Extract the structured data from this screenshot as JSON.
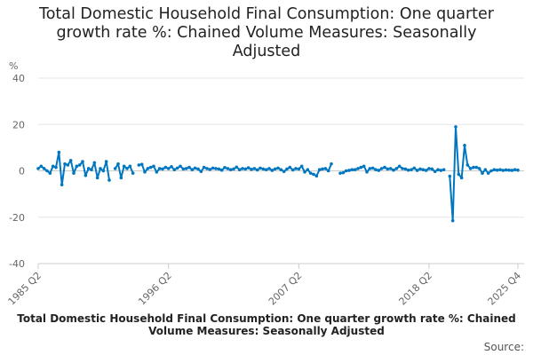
{
  "chart_data": {
    "type": "line",
    "title_lines": [
      "Total Domestic Household Final Consumption: One quarter",
      "growth rate %: Chained Volume Measures: Seasonally",
      "Adjusted"
    ],
    "ylabel": "%",
    "ylim": [
      -40,
      40
    ],
    "yticks": [
      40,
      20,
      0,
      -20,
      -40
    ],
    "x_start": "1985 Q2",
    "x_end": "2025 Q4",
    "xticks": [
      {
        "label": "1985 Q2",
        "index": 0
      },
      {
        "label": "1996 Q2",
        "index": 44
      },
      {
        "label": "2007 Q2",
        "index": 88
      },
      {
        "label": "2018 Q2",
        "index": 132
      },
      {
        "label": "2025 Q4",
        "index": 162
      }
    ],
    "grid": true,
    "series": [
      {
        "name": "Total Domestic Household Final Consumption: One quarter growth rate %: Chained Volume Measures: Seasonally Adjusted",
        "color": "#0077c0",
        "values": [
          1,
          2,
          1,
          0,
          -1,
          2,
          1.5,
          8,
          -6,
          3,
          2.5,
          4.5,
          -1,
          2,
          2.5,
          4,
          -2,
          1,
          0.5,
          3.5,
          -3,
          1,
          0,
          4,
          -4,
          null,
          1,
          3,
          -3,
          2,
          1,
          2,
          -1,
          null,
          2.5,
          2.8,
          -0.5,
          1,
          1.5,
          2,
          -0.5,
          1,
          0.8,
          1.5,
          1,
          1.8,
          0.5,
          1.2,
          2,
          0.8,
          1,
          1.5,
          0.5,
          1.2,
          0.8,
          -0.3,
          1.5,
          1,
          0.6,
          1.2,
          1,
          0.8,
          0.3,
          1.4,
          1,
          0.5,
          0.8,
          1.6,
          0.5,
          1,
          0.8,
          1.3,
          0.6,
          1,
          0.4,
          1.2,
          0.8,
          0.5,
          1,
          0.2,
          0.8,
          1.2,
          0.5,
          -0.3,
          0.8,
          1.5,
          0.4,
          1,
          0.8,
          2,
          -0.5,
          0.5,
          -1,
          -1.5,
          -2.2,
          0.5,
          0.8,
          1,
          0,
          3,
          null,
          null,
          -1,
          -0.8,
          0,
          0.2,
          0.5,
          0.5,
          1,
          1.5,
          2,
          -0.5,
          1,
          1.2,
          0.5,
          0.2,
          1,
          1.5,
          0.8,
          1,
          0.3,
          1,
          2,
          1,
          0.8,
          0.3,
          0.5,
          1.2,
          0.2,
          0.8,
          0.5,
          0.2,
          1,
          0.8,
          -0.3,
          0.5,
          0.2,
          0.5,
          null,
          -2.3,
          -21.5,
          19,
          -1.5,
          -3,
          11,
          2.5,
          1,
          1.5,
          1.5,
          1,
          -1,
          0.5,
          -1,
          0,
          0.5,
          0.3,
          0.5,
          0.2,
          0.4,
          0.3,
          0.2,
          0.5,
          0.3
        ]
      }
    ],
    "footer_text": "Total Domestic Household Final Consumption: One quarter growth rate %: Chained Volume Measures: Seasonally Adjusted",
    "source_label": "Source:"
  }
}
